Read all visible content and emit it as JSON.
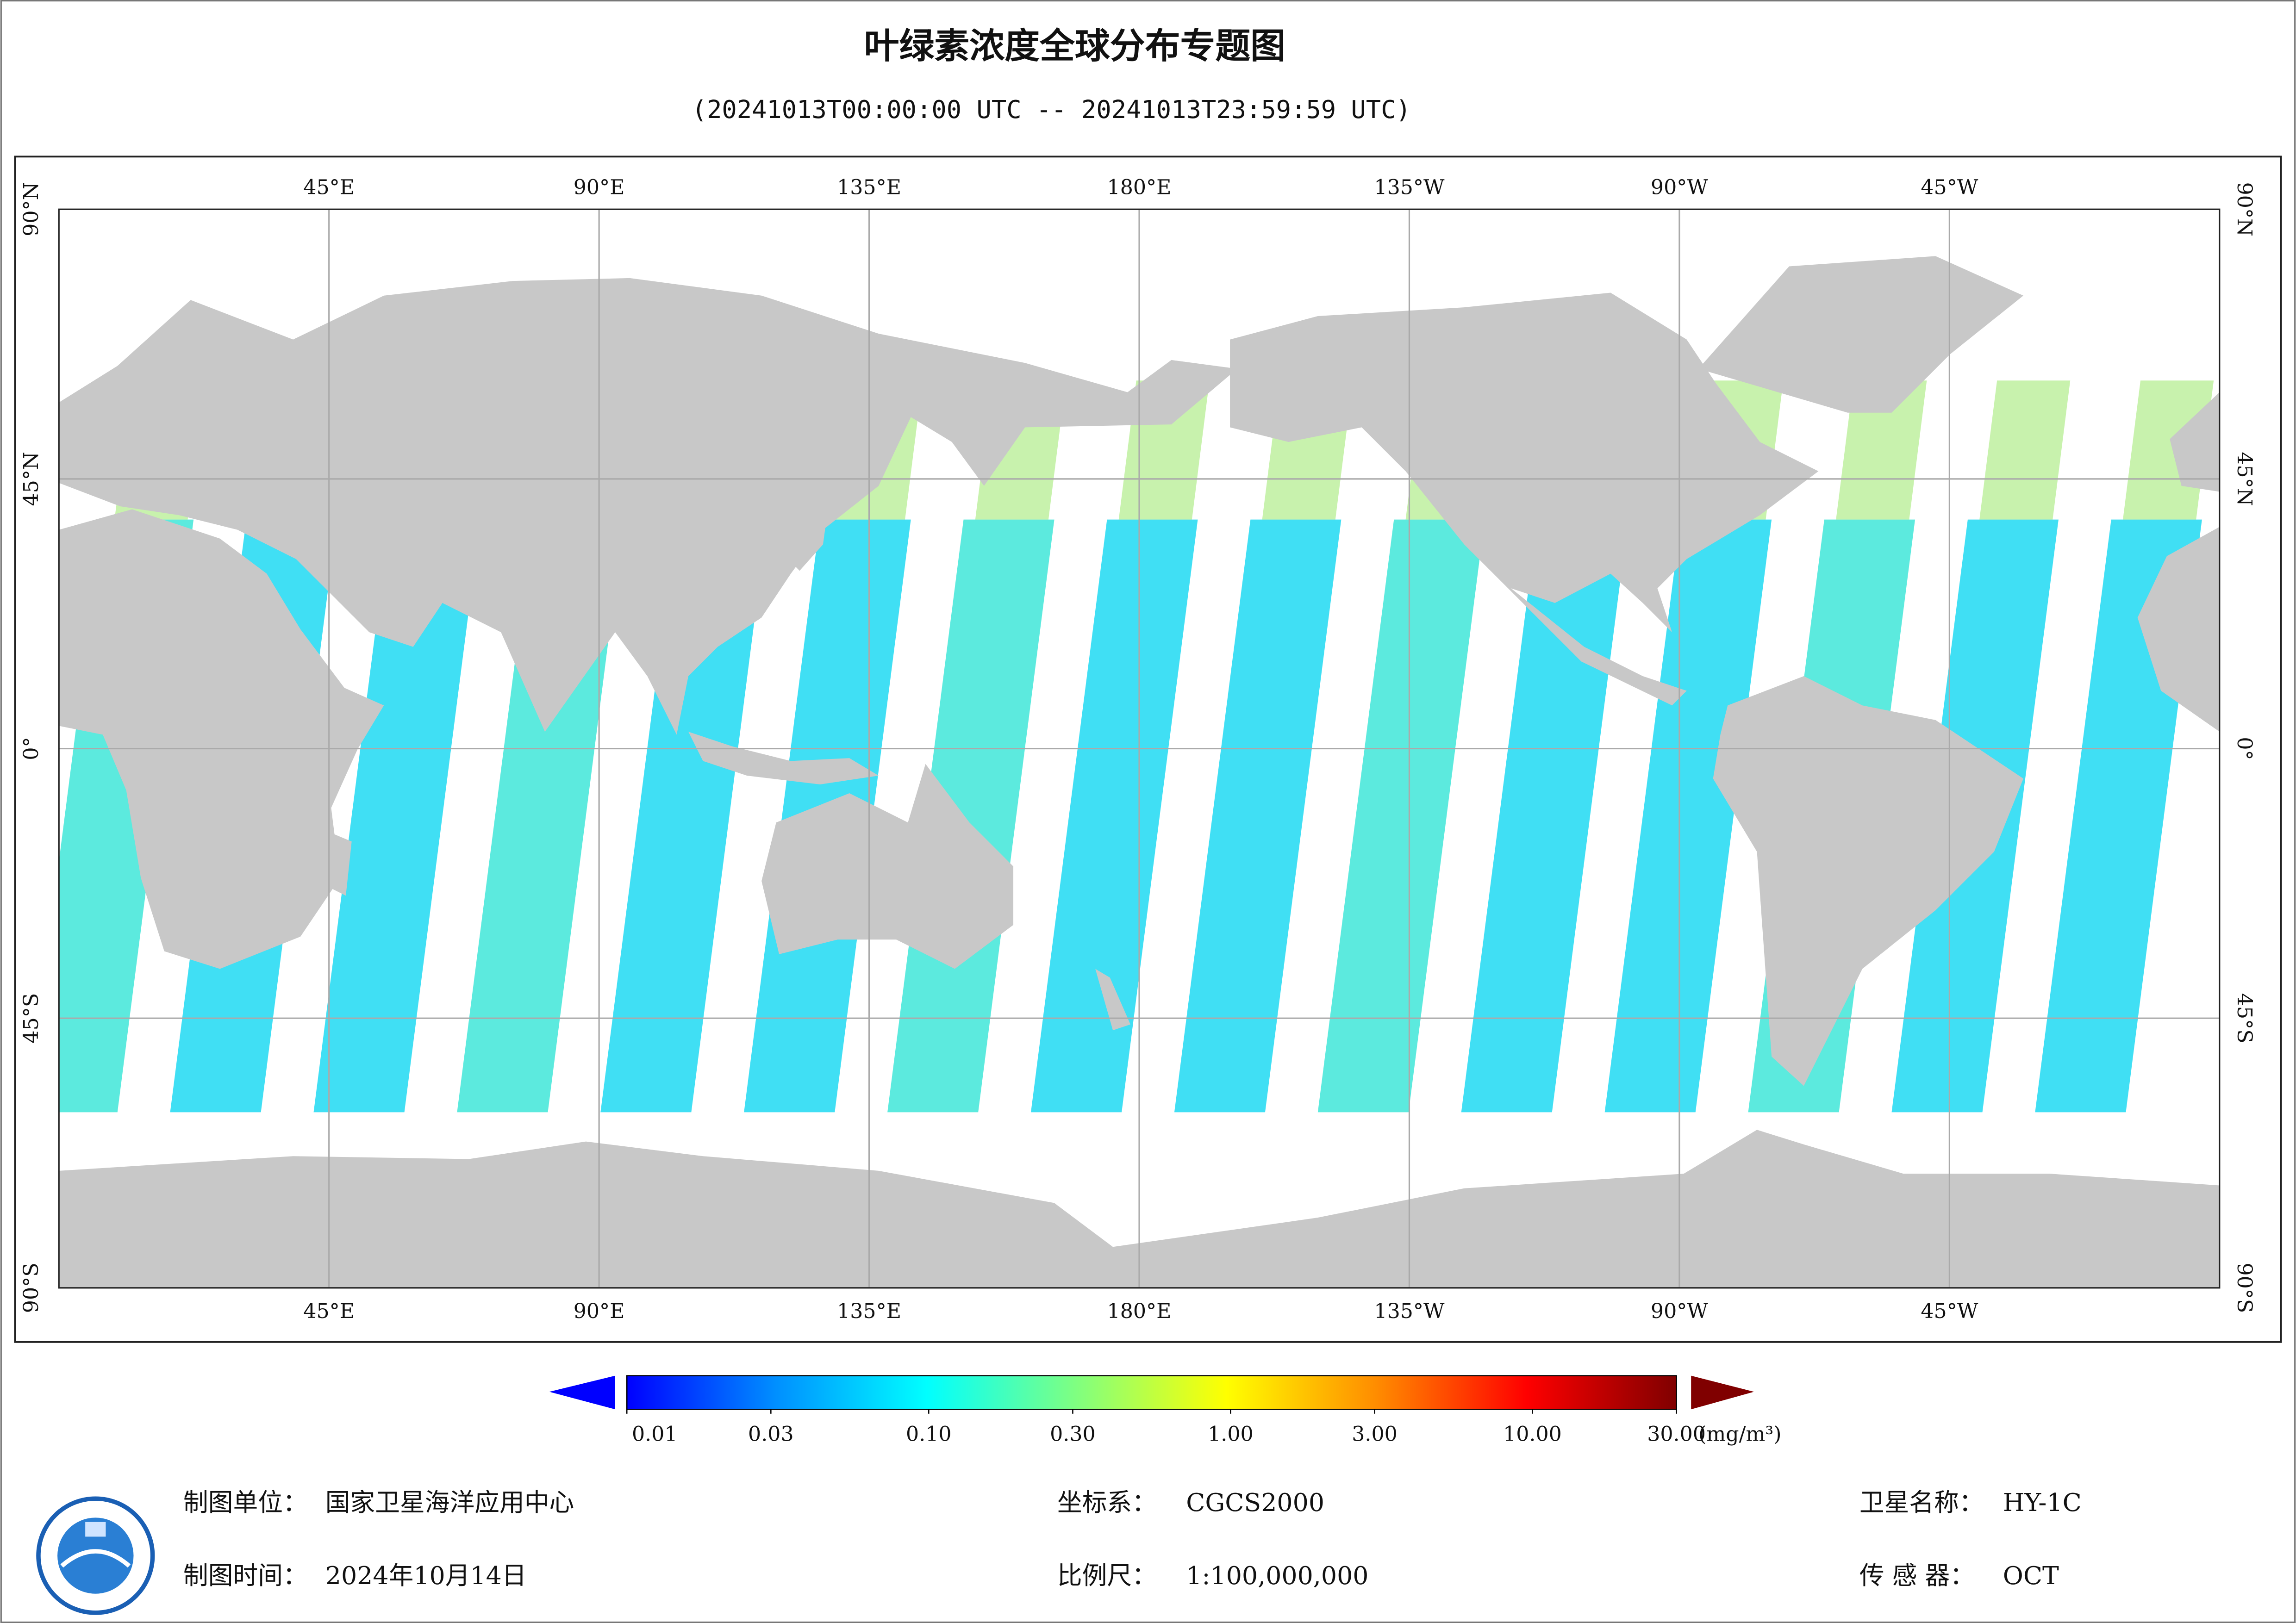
{
  "title": "叶绿素浓度全球分布专题图",
  "subtitle": "(20241013T00:00:00 UTC -- 20241013T23:59:59 UTC)",
  "map": {
    "lon_range": [
      0,
      360
    ],
    "lat_range": [
      90,
      -90
    ],
    "lon_ticks": [
      {
        "value": 45,
        "label": "45°E"
      },
      {
        "value": 90,
        "label": "90°E"
      },
      {
        "value": 135,
        "label": "135°E"
      },
      {
        "value": 180,
        "label": "180°E"
      },
      {
        "value": 225,
        "label": "135°W"
      },
      {
        "value": 270,
        "label": "90°W"
      },
      {
        "value": 315,
        "label": "45°W"
      }
    ],
    "lat_ticks": [
      {
        "value": 90,
        "label": "90°N"
      },
      {
        "value": 45,
        "label": "45°N"
      },
      {
        "value": 0,
        "label": "0°"
      },
      {
        "value": -45,
        "label": "45°S"
      },
      {
        "value": -90,
        "label": "90°S"
      }
    ]
  },
  "colorbar": {
    "range": [
      0.01,
      30
    ],
    "log": true,
    "colors": [
      "#0000ff",
      "#0090ff",
      "#00ffff",
      "#80ff80",
      "#ffff00",
      "#ff8c00",
      "#ff0000",
      "#800000"
    ],
    "ticks": [
      0.01,
      0.03,
      {
        "value": 0.1,
        "label": "0.10"
      },
      {
        "value": 0.3,
        "label": "0.30"
      },
      {
        "value": 1,
        "label": "1.00"
      },
      {
        "value": 3,
        "label": "3.00"
      },
      {
        "value": 10,
        "label": "10.00"
      },
      {
        "value": 30,
        "label": "30.00"
      }
    ],
    "unit": "(mg/m³)"
  },
  "footer": [
    {
      "label": "制图单位：",
      "value": "国家卫星海洋应用中心"
    },
    {
      "label": "制图时间：",
      "value": "2024年10月14日"
    },
    {
      "label": "坐标系：",
      "value": "CGCS2000"
    },
    {
      "label": "比例尺：",
      "value": "1:100,000,000"
    },
    {
      "label": "卫星名称：",
      "value": "HY-1C"
    },
    {
      "label": "传 感 器：",
      "value": "OCT"
    }
  ]
}
